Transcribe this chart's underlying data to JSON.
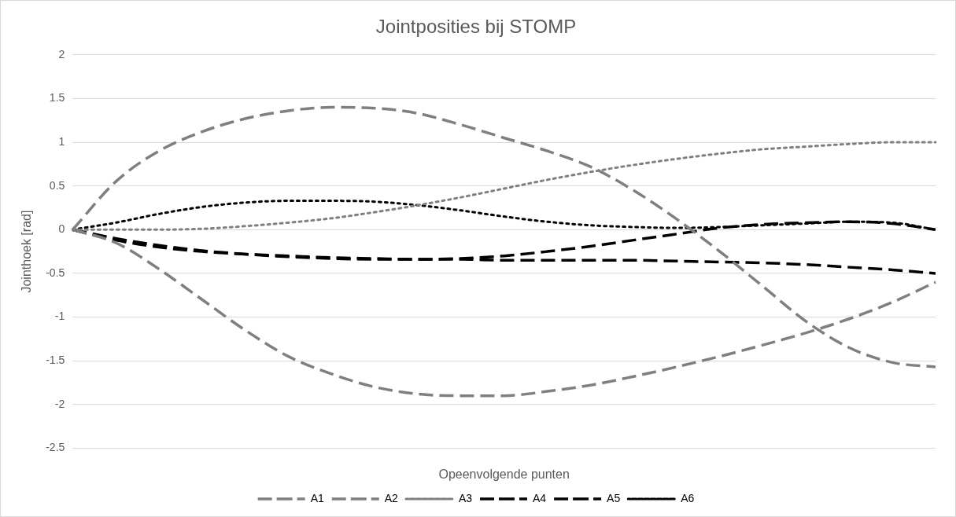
{
  "chart_data": {
    "type": "line",
    "title": "Jointposities bij STOMP",
    "xlabel": "Opeenvolgende punten",
    "ylabel": "Jointhoek [rad]",
    "categories": [
      null,
      null,
      null,
      null,
      null,
      null,
      null,
      null,
      null,
      null,
      null,
      null,
      null,
      null,
      null,
      null,
      null,
      null,
      null,
      null,
      null
    ],
    "series": [
      {
        "name": "A1",
        "color": "#7f7f7f",
        "line_style": "dashed",
        "values": [
          0,
          0.55,
          0.9,
          1.12,
          1.27,
          1.36,
          1.4,
          1.39,
          1.33,
          1.2,
          1.05,
          0.9,
          0.72,
          0.45,
          0.12,
          -0.25,
          -0.65,
          -1.05,
          -1.35,
          -1.52,
          -1.57
        ]
      },
      {
        "name": "A2",
        "color": "#7f7f7f",
        "line_style": "dashed",
        "values": [
          0,
          -0.15,
          -0.45,
          -0.8,
          -1.15,
          -1.45,
          -1.65,
          -1.8,
          -1.88,
          -1.9,
          -1.9,
          -1.85,
          -1.78,
          -1.68,
          -1.57,
          -1.45,
          -1.32,
          -1.18,
          -1.02,
          -0.83,
          -0.6
        ]
      },
      {
        "name": "A3",
        "color": "#7f7f7f",
        "line_style": "dotted",
        "values": [
          0,
          0,
          0,
          0.01,
          0.04,
          0.08,
          0.13,
          0.2,
          0.28,
          0.37,
          0.47,
          0.57,
          0.66,
          0.74,
          0.81,
          0.87,
          0.92,
          0.95,
          0.98,
          1,
          1
        ]
      },
      {
        "name": "A4",
        "color": "#000000",
        "line_style": "dashed",
        "values": [
          0,
          -0.1,
          -0.18,
          -0.24,
          -0.28,
          -0.31,
          -0.33,
          -0.34,
          -0.34,
          -0.33,
          -0.3,
          -0.25,
          -0.19,
          -0.12,
          -0.05,
          0.02,
          0.06,
          0.08,
          0.09,
          0.07,
          0
        ]
      },
      {
        "name": "A5",
        "color": "#000000",
        "line_style": "dashed",
        "values": [
          0,
          -0.12,
          -0.2,
          -0.25,
          -0.28,
          -0.3,
          -0.32,
          -0.33,
          -0.34,
          -0.34,
          -0.35,
          -0.35,
          -0.35,
          -0.35,
          -0.36,
          -0.37,
          -0.38,
          -0.4,
          -0.43,
          -0.46,
          -0.5
        ]
      },
      {
        "name": "A6",
        "color": "#000000",
        "line_style": "dotted",
        "values": [
          0,
          0.08,
          0.18,
          0.26,
          0.31,
          0.33,
          0.33,
          0.32,
          0.28,
          0.22,
          0.15,
          0.09,
          0.05,
          0.03,
          0.02,
          0.03,
          0.05,
          0.07,
          0.09,
          0.08,
          0
        ]
      }
    ],
    "ylim": [
      -2.5,
      2
    ],
    "yticks": [
      -2.5,
      -2,
      -1.5,
      -1,
      -0.5,
      0,
      0.5,
      1,
      1.5,
      2
    ],
    "grid": "y",
    "legend": "bottom",
    "marker": "none"
  }
}
